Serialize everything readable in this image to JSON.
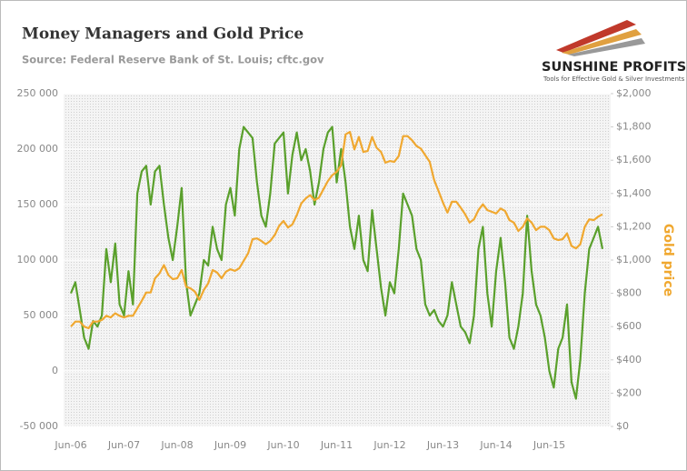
{
  "chart_data": {
    "type": "line",
    "title": "Money Managers and Gold Price",
    "subtitle": "Source: Federal Reserve Bank of St. Louis; cftc.gov",
    "categories": [
      "Jun-06",
      null,
      null,
      null,
      null,
      null,
      null,
      null,
      null,
      null,
      null,
      null,
      "Jun-07",
      null,
      null,
      null,
      null,
      null,
      null,
      null,
      null,
      null,
      null,
      null,
      "Jun-08",
      null,
      null,
      null,
      null,
      null,
      null,
      null,
      null,
      null,
      null,
      null,
      "Jun-09",
      null,
      null,
      null,
      null,
      null,
      null,
      null,
      null,
      null,
      null,
      null,
      "Jun-10",
      null,
      null,
      null,
      null,
      null,
      null,
      null,
      null,
      null,
      null,
      null,
      "Jun-11",
      null,
      null,
      null,
      null,
      null,
      null,
      null,
      null,
      null,
      null,
      null,
      "Jun-12",
      null,
      null,
      null,
      null,
      null,
      null,
      null,
      null,
      null,
      null,
      null,
      "Jun-13",
      null,
      null,
      null,
      null,
      null,
      null,
      null,
      null,
      null,
      null,
      null,
      "Jun-14",
      null,
      null,
      null,
      null,
      null,
      null,
      null,
      null,
      null,
      null,
      null,
      "Jun-15",
      null,
      null,
      null,
      null,
      null,
      null,
      null,
      null,
      null,
      null,
      null,
      null
    ],
    "series": [
      {
        "color": "#5aa02c",
        "axis": "y",
        "values": [
          70000,
          80000,
          55000,
          30000,
          20000,
          45000,
          40000,
          50000,
          110000,
          80000,
          115000,
          60000,
          50000,
          90000,
          60000,
          160000,
          180000,
          185000,
          150000,
          180000,
          185000,
          150000,
          120000,
          100000,
          130000,
          165000,
          80000,
          50000,
          60000,
          70000,
          100000,
          95000,
          130000,
          110000,
          100000,
          150000,
          165000,
          140000,
          200000,
          220000,
          215000,
          210000,
          170000,
          140000,
          130000,
          160000,
          205000,
          210000,
          215000,
          160000,
          195000,
          215000,
          190000,
          200000,
          180000,
          150000,
          170000,
          200000,
          215000,
          220000,
          170000,
          200000,
          170000,
          130000,
          110000,
          140000,
          100000,
          90000,
          145000,
          110000,
          75000,
          50000,
          80000,
          70000,
          110000,
          160000,
          150000,
          140000,
          110000,
          100000,
          60000,
          50000,
          55000,
          45000,
          40000,
          50000,
          80000,
          60000,
          40000,
          35000,
          25000,
          50000,
          110000,
          130000,
          70000,
          40000,
          90000,
          120000,
          80000,
          30000,
          20000,
          40000,
          70000,
          140000,
          90000,
          60000,
          50000,
          30000,
          0,
          -15000,
          20000,
          30000,
          60000,
          -10000,
          -25000,
          10000,
          70000,
          110000,
          120000,
          130000,
          110000
        ]
      },
      {
        "name": "Gold price",
        "color": "#f0a830",
        "axis": "y2",
        "values": [
          600,
          630,
          630,
          600,
          590,
          630,
          630,
          640,
          665,
          655,
          680,
          665,
          655,
          665,
          665,
          710,
          755,
          805,
          805,
          890,
          920,
          970,
          910,
          885,
          890,
          940,
          840,
          830,
          810,
          760,
          820,
          860,
          940,
          925,
          890,
          930,
          945,
          935,
          950,
          995,
          1040,
          1125,
          1130,
          1115,
          1095,
          1115,
          1150,
          1205,
          1235,
          1195,
          1215,
          1270,
          1340,
          1370,
          1390,
          1360,
          1375,
          1425,
          1475,
          1510,
          1530,
          1570,
          1755,
          1770,
          1665,
          1740,
          1650,
          1655,
          1740,
          1675,
          1650,
          1585,
          1595,
          1590,
          1625,
          1745,
          1745,
          1720,
          1685,
          1670,
          1630,
          1590,
          1480,
          1415,
          1345,
          1285,
          1350,
          1350,
          1315,
          1275,
          1225,
          1245,
          1300,
          1335,
          1300,
          1290,
          1280,
          1310,
          1295,
          1240,
          1225,
          1175,
          1200,
          1250,
          1225,
          1180,
          1200,
          1200,
          1180,
          1130,
          1120,
          1125,
          1160,
          1085,
          1070,
          1095,
          1200,
          1245,
          1240,
          1260,
          1275
        ]
      }
    ],
    "ylim": [
      -50000,
      250000
    ],
    "yticks": [
      {
        "value": -50000,
        "label": "-50 000"
      },
      0,
      {
        "value": 50000,
        "label": "50 000"
      },
      {
        "value": 100000,
        "label": "100 000"
      },
      {
        "value": 150000,
        "label": "150 000"
      },
      {
        "value": 200000,
        "label": "200 000"
      },
      {
        "value": 250000,
        "label": "250 000"
      }
    ],
    "y2lim": [
      0,
      2000
    ],
    "y2ticks": [
      {
        "value": 0,
        "label": "$0"
      },
      {
        "value": 200,
        "label": "$200"
      },
      {
        "value": 400,
        "label": "$400"
      },
      {
        "value": 600,
        "label": "$600"
      },
      {
        "value": 800,
        "label": "$800"
      },
      {
        "value": 1000,
        "label": "$1,000"
      },
      {
        "value": 1200,
        "label": "$1,200"
      },
      {
        "value": 1400,
        "label": "$1,400"
      },
      {
        "value": 1600,
        "label": "$1,600"
      },
      {
        "value": 1800,
        "label": "$1,800"
      },
      {
        "value": 2000,
        "label": "$2,000"
      }
    ],
    "grid": true
  },
  "logo": {
    "name": "SUNSHINE PROFITS",
    "tagline": "Tools for Effective Gold & Silver Investments"
  }
}
